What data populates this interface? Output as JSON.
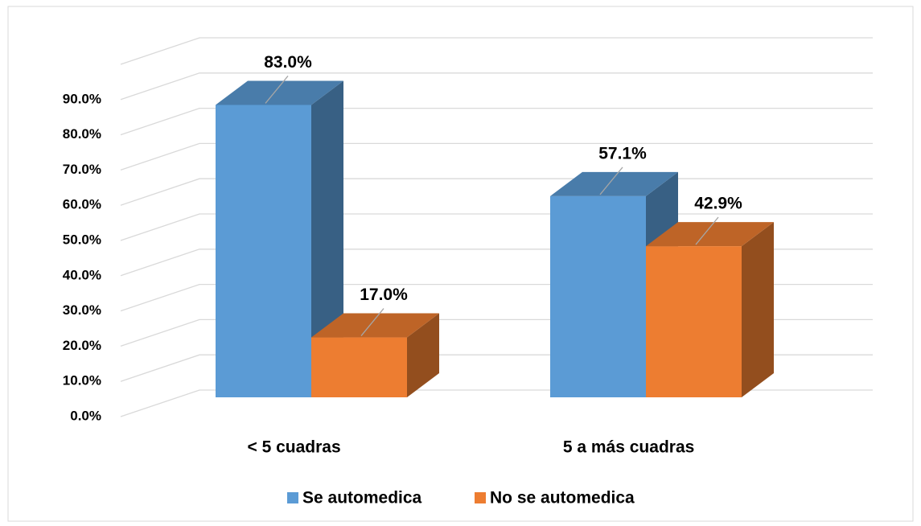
{
  "chart_data": {
    "type": "bar",
    "categories": [
      "< 5 cuadras",
      "5 a más cuadras"
    ],
    "series": [
      {
        "name": "Se automedica",
        "color": "#5b9bd5",
        "values": [
          83.0,
          57.1
        ],
        "value_labels": [
          "83.0%",
          "57.1%"
        ]
      },
      {
        "name": "No se automedica",
        "color": "#ed7d31",
        "values": [
          17.0,
          42.9
        ],
        "value_labels": [
          "17.0%",
          "42.9%"
        ]
      }
    ],
    "ylim": [
      0,
      100
    ],
    "yticks": [
      {
        "value": 0,
        "label": "0.0%"
      },
      {
        "value": 10,
        "label": "10.0%"
      },
      {
        "value": 20,
        "label": "20.0%"
      },
      {
        "value": 30,
        "label": "30.0%"
      },
      {
        "value": 40,
        "label": "40.0%"
      },
      {
        "value": 50,
        "label": "50.0%"
      },
      {
        "value": 60,
        "label": "60.0%"
      },
      {
        "value": 70,
        "label": "70.0%"
      },
      {
        "value": 80,
        "label": "80.0%"
      },
      {
        "value": 90,
        "label": "90.0%"
      }
    ],
    "grid": true,
    "legend": "bottom"
  }
}
